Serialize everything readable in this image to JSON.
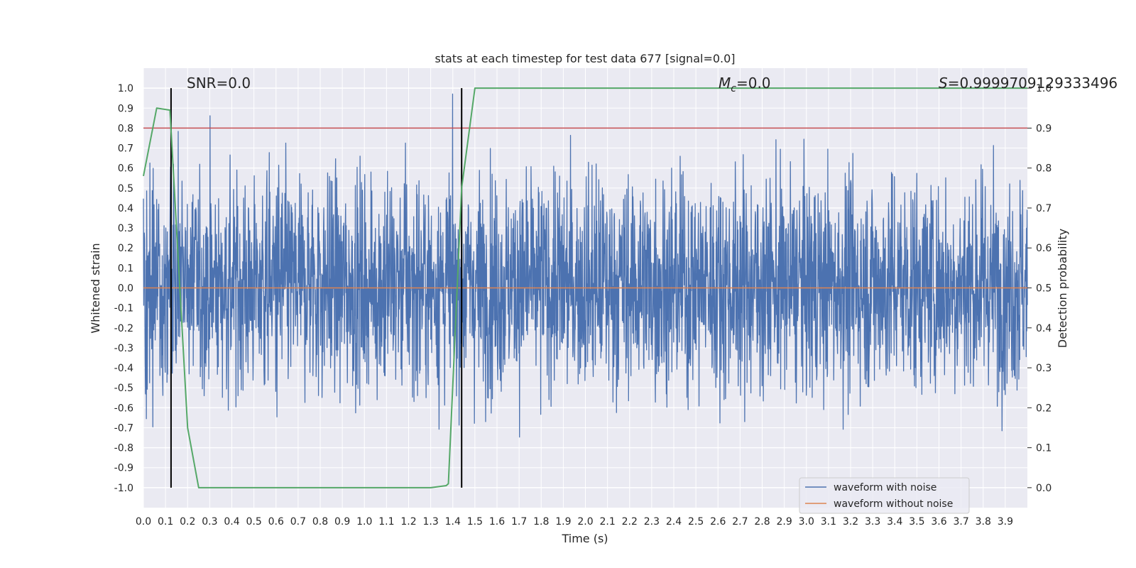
{
  "chart_data": {
    "type": "line",
    "title": "stats at each timestep for test data 677 [signal=0.0]",
    "xlabel": "Time (s)",
    "ylabel": "Whitened strain",
    "ylabel_right": "Detection probability",
    "xlim": [
      0.0,
      4.0
    ],
    "ylim": [
      -1.1,
      1.1
    ],
    "ylim_right": [
      -0.05,
      1.05
    ],
    "grid": true,
    "legend_position": "lower-right",
    "x_ticks": [
      "0.0",
      "0.1",
      "0.2",
      "0.3",
      "0.4",
      "0.5",
      "0.6",
      "0.7",
      "0.8",
      "0.9",
      "1.0",
      "1.1",
      "1.2",
      "1.3",
      "1.4",
      "1.5",
      "1.6",
      "1.7",
      "1.8",
      "1.9",
      "2.0",
      "2.1",
      "2.2",
      "2.3",
      "2.4",
      "2.5",
      "2.6",
      "2.7",
      "2.8",
      "2.9",
      "3.0",
      "3.1",
      "3.2",
      "3.3",
      "3.4",
      "3.5",
      "3.6",
      "3.7",
      "3.8",
      "3.9"
    ],
    "y_ticks": [
      "1.0",
      "0.9",
      "0.8",
      "0.7",
      "0.6",
      "0.5",
      "0.4",
      "0.3",
      "0.2",
      "0.1",
      "0.0",
      "-0.1",
      "-0.2",
      "-0.3",
      "-0.4",
      "-0.5",
      "-0.6",
      "-0.7",
      "-0.8",
      "-0.9",
      "-1.0"
    ],
    "y_ticks_right": [
      "1.0",
      "0.9",
      "0.8",
      "0.7",
      "0.6",
      "0.5",
      "0.4",
      "0.3",
      "0.2",
      "0.1",
      "0.0"
    ],
    "series": [
      {
        "name": "waveform with noise",
        "color": "#4c72b0",
        "kind": "noise",
        "amplitude_range": [
          -0.95,
          1.0
        ]
      },
      {
        "name": "waveform without noise",
        "color": "#dd8452",
        "x": [
          0.0,
          4.0
        ],
        "y": [
          0.0,
          0.0
        ]
      }
    ],
    "detection_probability": {
      "color": "#55a868",
      "x": [
        0.0,
        0.06,
        0.12,
        0.2,
        0.25,
        0.5,
        1.0,
        1.3,
        1.37,
        1.38,
        1.44,
        1.5,
        2.0,
        3.0,
        3.9,
        4.0
      ],
      "y": [
        0.78,
        0.95,
        0.945,
        0.15,
        0.0,
        0.0,
        0.0,
        0.0,
        0.005,
        0.01,
        0.75,
        1.0,
        1.0,
        1.0,
        1.0,
        1.0
      ]
    },
    "threshold": {
      "color": "#c44e52",
      "value": 0.9
    },
    "vertical_markers": {
      "color": "#000000",
      "x": [
        0.125,
        1.44
      ]
    },
    "annotations": {
      "snr": "SNR=0.0",
      "mc_symbol": "M",
      "mc_sub": "c",
      "mc_value": "=0.0",
      "s_symbol": "S",
      "s_value": "=0.9999709129333496"
    }
  }
}
